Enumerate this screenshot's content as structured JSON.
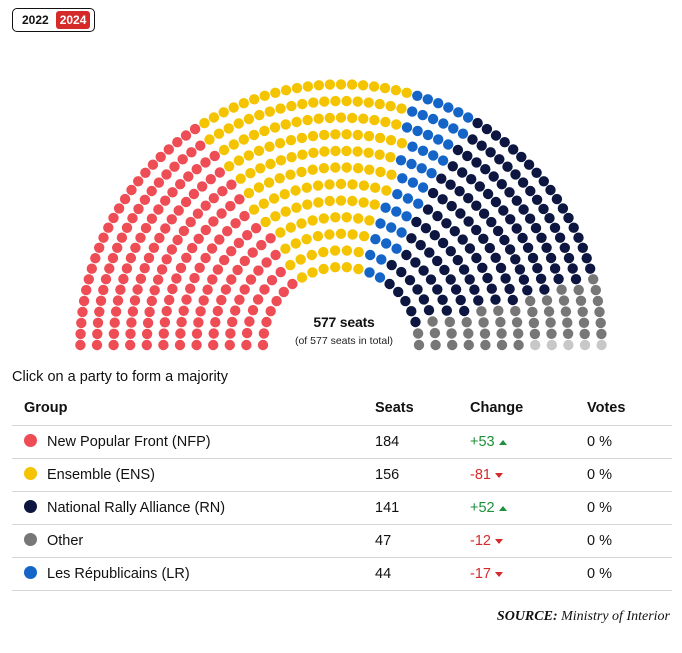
{
  "year_toggle": {
    "years": [
      "2022",
      "2024"
    ],
    "active": "2024"
  },
  "total": {
    "headline": "577 seats",
    "subline": "(of 577 seats in total)"
  },
  "instruction": "Click on a party to form a majority",
  "table": {
    "headers": {
      "group": "Group",
      "seats": "Seats",
      "change": "Change",
      "votes": "Votes"
    },
    "rows": [
      {
        "name": "New Popular Front (NFP)",
        "seats": "184",
        "change": "+53",
        "direction": "up",
        "votes": "0 %",
        "color": "#ee4d55"
      },
      {
        "name": "Ensemble (ENS)",
        "seats": "156",
        "change": "-81",
        "direction": "down",
        "votes": "0 %",
        "color": "#f5c400"
      },
      {
        "name": "National Rally Alliance (RN)",
        "seats": "141",
        "change": "+52",
        "direction": "up",
        "votes": "0 %",
        "color": "#0c1640"
      },
      {
        "name": "Other",
        "seats": "47",
        "change": "-12",
        "direction": "down",
        "votes": "0 %",
        "color": "#777777"
      },
      {
        "name": "Les Républicains (LR)",
        "seats": "44",
        "change": "-17",
        "direction": "down",
        "votes": "0 %",
        "color": "#1565c8"
      }
    ]
  },
  "source": {
    "label": "SOURCE:",
    "text": "Ministry of Interior"
  },
  "chart_data": {
    "type": "parliament",
    "total_seats": 577,
    "series": [
      {
        "name": "New Popular Front (NFP)",
        "value": 184,
        "color": "#ee4d55"
      },
      {
        "name": "Ensemble (ENS)",
        "value": 156,
        "color": "#f5c400"
      },
      {
        "name": "Les Républicains (LR)",
        "value": 44,
        "color": "#1565c8"
      },
      {
        "name": "National Rally Alliance (RN)",
        "value": 141,
        "color": "#0c1640"
      },
      {
        "name": "Other",
        "value": 47,
        "color": "#777777"
      },
      {
        "name": "",
        "value": 5,
        "color": "#c8c8c8"
      }
    ],
    "colors": {
      "up": "#1e8f3a",
      "down": "#d62a2a",
      "accent": "#d62a2a"
    }
  }
}
